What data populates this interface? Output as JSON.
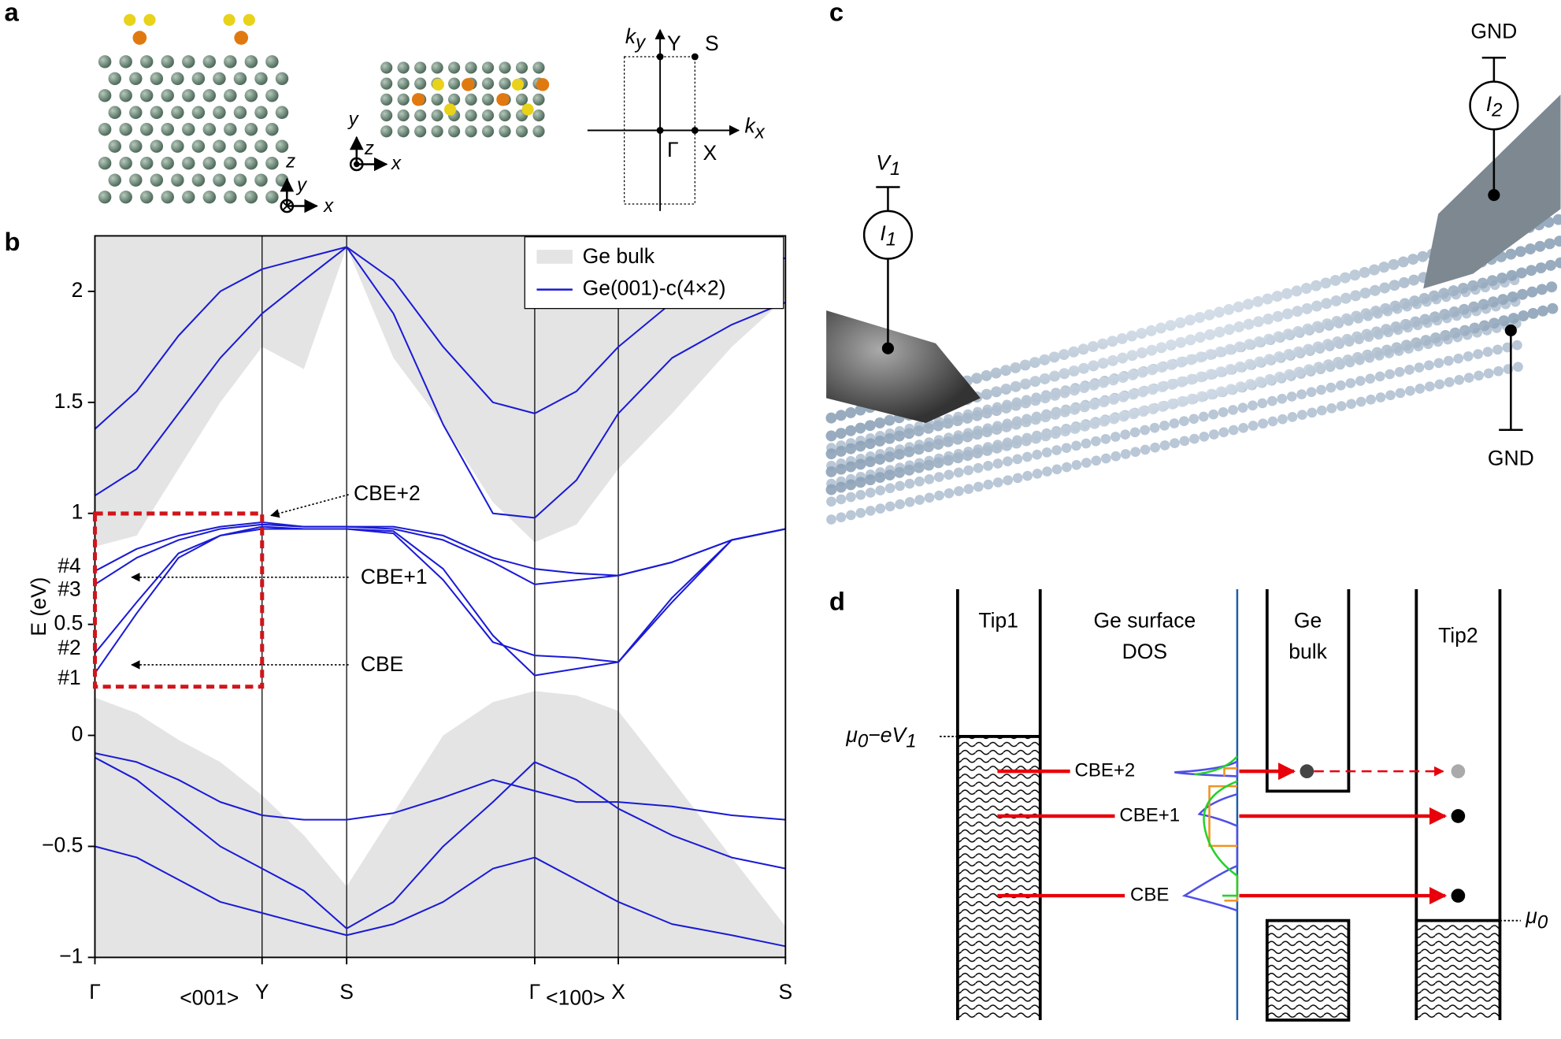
{
  "panel_labels": [
    "a",
    "b",
    "c",
    "d"
  ],
  "panel_a": {
    "axes1": [
      "z",
      "y",
      "x"
    ],
    "axes2": [
      "y",
      "z",
      "x"
    ],
    "bz": {
      "ky": {
        "main": "k",
        "sub": "y"
      },
      "kx": {
        "main": "k",
        "sub": "x"
      },
      "points": [
        "Y",
        "S",
        "Γ",
        "X"
      ]
    }
  },
  "chart_data": {
    "type": "line",
    "y_label": "E (eV)",
    "x": [
      0,
      42,
      84,
      126,
      168,
      210,
      253,
      300,
      350,
      400,
      442,
      484,
      526,
      580,
      640,
      694
    ],
    "xlim": [
      0,
      694
    ],
    "xticks": [
      {
        "value": 0,
        "label": "Γ"
      },
      {
        "value": 168,
        "label": "Y"
      },
      {
        "value": 253,
        "label": "S"
      },
      {
        "value": 442,
        "label": "Γ"
      },
      {
        "value": 526,
        "label": "X"
      },
      {
        "value": 694,
        "label": "S"
      }
    ],
    "ylim": [
      -1,
      2.25
    ],
    "yticks": [
      {
        "value": -1,
        "label": "−1"
      },
      {
        "value": -0.5,
        "label": "−0.5"
      },
      0,
      0.5,
      1,
      1.5,
      2
    ],
    "directions": [
      "<001>",
      "<100>"
    ],
    "bulk": {
      "name": "Ge bulk",
      "color": "#e4e4e4",
      "conduction_min": [
        0.85,
        0.9,
        1.2,
        1.5,
        1.75,
        1.65,
        2.2,
        1.7,
        1.4,
        1.05,
        0.87,
        0.95,
        1.2,
        1.45,
        1.75,
        1.97
      ],
      "valence_max": [
        0.17,
        0.1,
        -0.02,
        -0.12,
        -0.27,
        -0.45,
        -0.68,
        -0.35,
        0.0,
        0.15,
        0.2,
        0.18,
        0.11,
        -0.2,
        -0.55,
        -0.86
      ]
    },
    "series": [
      {
        "name": "Ge(001)-c(4×2)",
        "color": "#1a1ad6",
        "values": [
          [
            0.28,
            0.55,
            0.8,
            0.9,
            0.94,
            0.93,
            0.93,
            0.92,
            0.75,
            0.45,
            0.27,
            0.3,
            0.33,
            0.6,
            0.88,
            0.93
          ],
          [
            0.37,
            0.6,
            0.82,
            0.9,
            0.93,
            0.93,
            0.93,
            0.91,
            0.7,
            0.42,
            0.36,
            0.35,
            0.33,
            0.62,
            0.88,
            0.93
          ],
          [
            0.68,
            0.8,
            0.88,
            0.93,
            0.95,
            0.94,
            0.94,
            0.93,
            0.88,
            0.78,
            0.68,
            0.7,
            0.72,
            0.78,
            0.88,
            0.93
          ],
          [
            0.74,
            0.84,
            0.9,
            0.94,
            0.96,
            0.94,
            0.94,
            0.94,
            0.9,
            0.8,
            0.75,
            0.73,
            0.72,
            0.78,
            0.88,
            0.93
          ],
          [
            1.08,
            1.2,
            1.45,
            1.7,
            1.9,
            2.05,
            2.2,
            1.9,
            1.4,
            1.0,
            0.98,
            1.15,
            1.45,
            1.7,
            1.85,
            1.95
          ],
          [
            1.38,
            1.55,
            1.8,
            2.0,
            2.1,
            2.15,
            2.2,
            2.05,
            1.75,
            1.5,
            1.45,
            1.55,
            1.75,
            1.95,
            2.1,
            2.15
          ],
          [
            -0.08,
            -0.12,
            -0.2,
            -0.3,
            -0.36,
            -0.38,
            -0.38,
            -0.35,
            -0.28,
            -0.2,
            -0.25,
            -0.3,
            -0.3,
            -0.32,
            -0.36,
            -0.38
          ],
          [
            -0.1,
            -0.2,
            -0.35,
            -0.5,
            -0.6,
            -0.7,
            -0.87,
            -0.75,
            -0.5,
            -0.3,
            -0.12,
            -0.2,
            -0.33,
            -0.45,
            -0.55,
            -0.6
          ],
          [
            -0.5,
            -0.55,
            -0.65,
            -0.75,
            -0.8,
            -0.85,
            -0.9,
            -0.85,
            -0.75,
            -0.6,
            -0.55,
            -0.65,
            -0.75,
            -0.85,
            -0.9,
            -0.95
          ]
        ]
      }
    ],
    "state_labels": [
      "#1",
      "#2",
      "#3",
      "#4"
    ],
    "annotations": [
      "CBE+2",
      "CBE+1",
      "CBE"
    ],
    "legend": "upper right"
  },
  "panel_c": {
    "v1": {
      "main": "V",
      "sub": "1"
    },
    "i1": {
      "main": "I",
      "sub": "1"
    },
    "i2": {
      "main": "I",
      "sub": "2"
    },
    "gnd": [
      "GND",
      "GND"
    ]
  },
  "panel_d": {
    "columns": [
      [
        "Tip1"
      ],
      [
        "Ge surface",
        "DOS"
      ],
      [
        "Ge",
        "bulk"
      ],
      [
        "Tip2"
      ]
    ],
    "mu_left": {
      "main": "μ",
      "sub": "0",
      "rest": "−eV",
      "sub2": "1"
    },
    "mu0": {
      "main": "μ",
      "sub": "0"
    },
    "levels": [
      "CBE+2",
      "CBE+1",
      "CBE"
    ]
  }
}
